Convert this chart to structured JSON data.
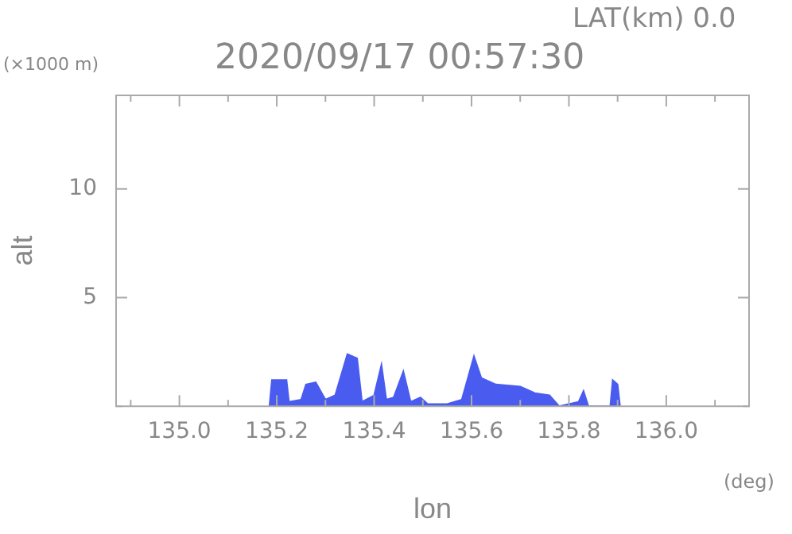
{
  "chart_data": {
    "type": "area",
    "title": "2020/09/17 00:57:30",
    "xlabel": "lon",
    "ylabel": "alt",
    "annotations": [
      "LAT(km) 0.0",
      "(×1000 m)",
      "(deg)"
    ],
    "x": [
      135.185,
      135.19,
      135.22,
      135.225,
      135.25,
      135.26,
      135.28,
      135.3,
      135.32,
      135.345,
      135.365,
      135.375,
      135.4,
      135.415,
      135.425,
      135.44,
      135.46,
      135.475,
      135.495,
      135.51,
      135.55,
      135.58,
      135.605,
      135.62,
      135.65,
      135.7,
      135.73,
      135.76,
      135.78,
      135.82,
      135.83,
      135.84,
      135.885,
      135.89,
      135.9,
      135.905
    ],
    "values": [
      0,
      1.2,
      1.2,
      0.2,
      0.3,
      1.0,
      1.1,
      0.3,
      0.5,
      2.4,
      2.2,
      0.2,
      0.5,
      1.9,
      0.3,
      0.4,
      1.6,
      0.2,
      0.4,
      0.1,
      0.1,
      0.3,
      2.3,
      1.3,
      1.0,
      0.9,
      0.6,
      0.5,
      0,
      0.2,
      0.7,
      0,
      0,
      1.2,
      1.0,
      0
    ],
    "color": "#4a5cf0",
    "xlim": [
      134.87,
      136.17
    ],
    "xticks": [
      {
        "value": 134.9,
        "label": null
      },
      {
        "value": 135,
        "label": "135.0"
      },
      {
        "value": 135.1,
        "label": null
      },
      {
        "value": 135.2,
        "label": "135.2"
      },
      {
        "value": 135.3,
        "label": null
      },
      {
        "value": 135.4,
        "label": "135.4"
      },
      {
        "value": 135.5,
        "label": null
      },
      {
        "value": 135.6,
        "label": "135.6"
      },
      {
        "value": 135.7,
        "label": null
      },
      {
        "value": 135.8,
        "label": "135.8"
      },
      {
        "value": 135.9,
        "label": null
      },
      {
        "value": 136,
        "label": "136.0"
      },
      {
        "value": 136.1,
        "label": null
      }
    ],
    "ylim": [
      0,
      14.3
    ],
    "yticks": [
      {
        "value": 0,
        "label": null
      },
      5,
      10
    ],
    "grid": false,
    "legend": false
  }
}
